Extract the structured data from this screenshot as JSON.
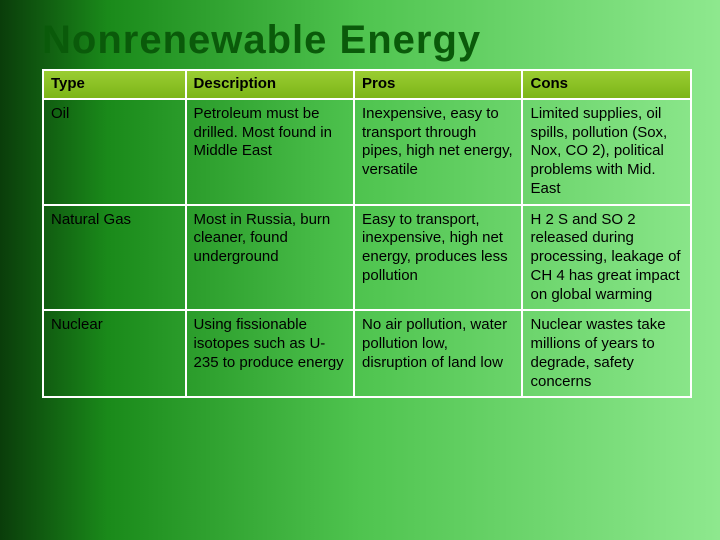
{
  "title": "Nonrenewable Energy",
  "table": {
    "headers": [
      "Type",
      "Description",
      "Pros",
      "Cons"
    ],
    "rows": [
      {
        "type": "Oil",
        "description": "Petroleum must be drilled. Most found in Middle East",
        "pros": "Inexpensive, easy to transport through pipes, high net energy, versatile",
        "cons": "Limited supplies, oil spills, pollution (Sox, Nox, CO 2), political problems with Mid. East"
      },
      {
        "type": "Natural Gas",
        "description": "Most in Russia, burn cleaner, found underground",
        "pros": "Easy to transport, inexpensive, high net energy, produces less pollution",
        "cons": "H 2 S and SO 2 released during processing, leakage of CH 4 has great impact on global warming"
      },
      {
        "type": "Nuclear",
        "description": "Using fissionable isotopes such as U-235 to produce energy",
        "pros": "No air pollution, water pollution low, disruption of land low",
        "cons": "Nuclear wastes take millions of years to degrade, safety concerns"
      }
    ]
  },
  "colors": {
    "background_gradient_start": "#0a3d0a",
    "background_gradient_end": "#8ee88e",
    "header_bg_start": "#9acd32",
    "header_bg_end": "#7cb518",
    "border": "#ffffff",
    "title": "#0a5a0a",
    "text": "#000000"
  },
  "typography": {
    "title_fontsize": 40,
    "title_weight": 900,
    "cell_fontsize": 15,
    "header_fontsize": 15
  }
}
